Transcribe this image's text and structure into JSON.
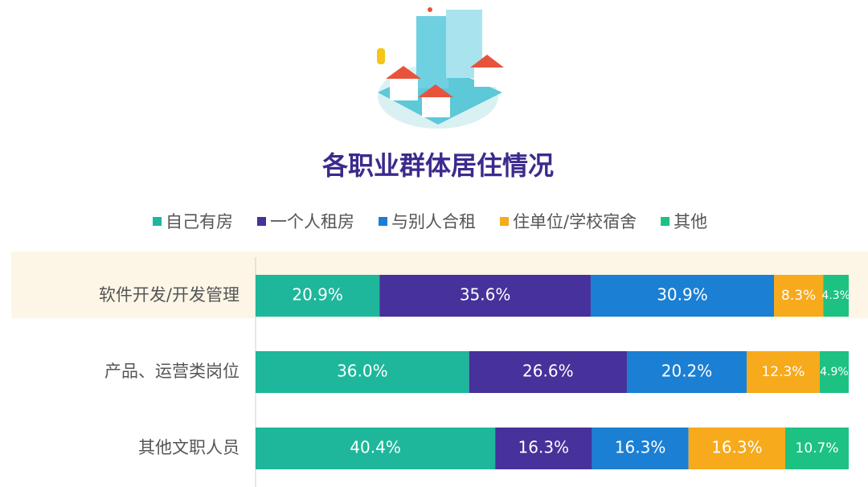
{
  "chart_data": {
    "type": "stacked-bar-horizontal",
    "title": "各职业群体居住情况",
    "categories": [
      "软件开发/开发管理",
      "产品、运营类岗位",
      "其他文职人员"
    ],
    "series": [
      {
        "name": "自己有房",
        "color": "#1eb79b",
        "values": [
          20.9,
          36.0,
          40.4
        ],
        "value_labels": [
          "20.9%",
          "36.0%",
          "40.4%"
        ]
      },
      {
        "name": "一个人租房",
        "color": "#47319a",
        "values": [
          35.6,
          26.6,
          16.3
        ],
        "value_labels": [
          "35.6%",
          "26.6%",
          "16.3%"
        ]
      },
      {
        "name": "与别人合租",
        "color": "#1b7fd3",
        "values": [
          30.9,
          20.2,
          16.3
        ],
        "value_labels": [
          "30.9%",
          "20.2%",
          "16.3%"
        ]
      },
      {
        "name": "住单位/学校宿舍",
        "color": "#f6aa1c",
        "values": [
          8.3,
          12.3,
          16.3
        ],
        "value_labels": [
          "8.3%",
          "12.3%",
          "16.3%"
        ]
      },
      {
        "name": "其他",
        "color": "#1dc182",
        "values": [
          4.3,
          4.9,
          10.7
        ],
        "value_labels": [
          "4.3%",
          "4.9%",
          "10.7%"
        ]
      }
    ]
  }
}
